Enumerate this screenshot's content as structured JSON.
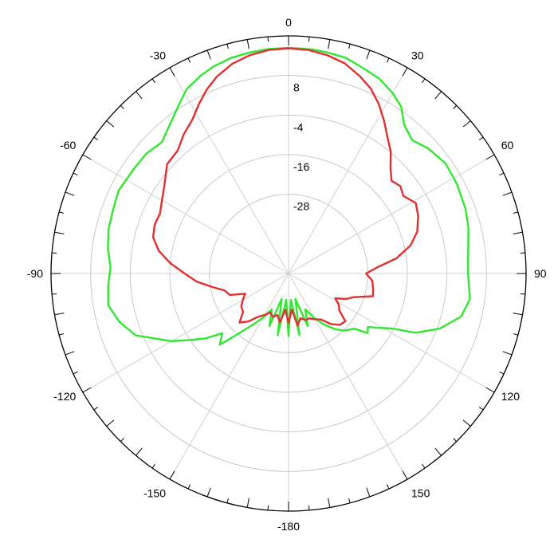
{
  "chart_data": {
    "type": "polar-line",
    "title": "",
    "angle_unit": "deg",
    "angle_labels": [
      {
        "angle": 0,
        "text": "0"
      },
      {
        "angle": 30,
        "text": "30"
      },
      {
        "angle": 60,
        "text": "60"
      },
      {
        "angle": 90,
        "text": "90"
      },
      {
        "angle": 120,
        "text": "120"
      },
      {
        "angle": 150,
        "text": "150"
      },
      {
        "angle": -180,
        "text": "-180"
      },
      {
        "angle": -150,
        "text": "-150"
      },
      {
        "angle": -120,
        "text": "-120"
      },
      {
        "angle": -90,
        "text": "-90"
      },
      {
        "angle": -60,
        "text": "-60"
      },
      {
        "angle": -30,
        "text": "-30"
      }
    ],
    "radial_labels": [
      "8",
      "-4",
      "-16",
      "-28"
    ],
    "radial_ticks": [
      8,
      -4,
      -16,
      -28
    ],
    "r_range": [
      -52,
      20
    ],
    "grid": true,
    "series": [
      {
        "color": "#32e632",
        "values": [
          [
            0,
            16.4
          ],
          [
            6,
            16.3
          ],
          [
            10,
            16.0
          ],
          [
            15,
            15.6
          ],
          [
            20,
            14.2
          ],
          [
            25,
            13.1
          ],
          [
            30,
            11.1
          ],
          [
            34,
            9.0
          ],
          [
            38,
            5.0
          ],
          [
            43,
            3.1
          ],
          [
            48,
            4.8
          ],
          [
            55,
            6.1
          ],
          [
            62,
            5.8
          ],
          [
            70,
            5.1
          ],
          [
            76,
            4.2
          ],
          [
            82,
            3.0
          ],
          [
            90,
            2.4
          ],
          [
            98,
            3.5
          ],
          [
            104,
            1.9
          ],
          [
            110,
            -3.2
          ],
          [
            115,
            -9.5
          ],
          [
            118,
            -16.5
          ],
          [
            121,
            -20.0
          ],
          [
            124,
            -23.0
          ],
          [
            127,
            -22.0
          ],
          [
            130,
            -26.0
          ],
          [
            133,
            -27.0
          ],
          [
            136,
            -28.0
          ],
          [
            140,
            -30.0
          ],
          [
            145,
            -33.0
          ],
          [
            150,
            -36.5
          ],
          [
            155,
            -40.0
          ],
          [
            160,
            -35.0
          ],
          [
            165,
            -44.0
          ],
          [
            170,
            -33.0
          ],
          [
            175,
            -44.0
          ],
          [
            180,
            -33.0
          ],
          [
            -175,
            -44.0
          ],
          [
            -170,
            -33.0
          ],
          [
            -165,
            -44.0
          ],
          [
            -160,
            -35.0
          ],
          [
            -155,
            -40.0
          ],
          [
            -150,
            -36.5
          ],
          [
            -145,
            -33.0
          ],
          [
            -140,
            -28.0
          ],
          [
            -136,
            -22.0
          ],
          [
            -132,
            -25.0
          ],
          [
            -128,
            -20.0
          ],
          [
            -124,
            -16.0
          ],
          [
            -120,
            -11.0
          ],
          [
            -116,
            -7.0
          ],
          [
            -112,
            -2.0
          ],
          [
            -106,
            1.3
          ],
          [
            -100,
            3.5
          ],
          [
            -94,
            2.8
          ],
          [
            -88,
            2.0
          ],
          [
            -82,
            3.3
          ],
          [
            -76,
            4.2
          ],
          [
            -70,
            4.6
          ],
          [
            -64,
            5.3
          ],
          [
            -56,
            4.6
          ],
          [
            -50,
            4.4
          ],
          [
            -44,
            3.3
          ],
          [
            -38,
            6.0
          ],
          [
            -33,
            9.0
          ],
          [
            -29,
            11.8
          ],
          [
            -24,
            13.6
          ],
          [
            -20,
            14.7
          ],
          [
            -15,
            15.6
          ],
          [
            -10,
            16.0
          ],
          [
            -5,
            16.3
          ],
          [
            0,
            16.4
          ]
        ]
      },
      {
        "color": "#e03030",
        "values": [
          [
            0,
            16.2
          ],
          [
            5,
            16.0
          ],
          [
            10,
            15.2
          ],
          [
            15,
            13.9
          ],
          [
            20,
            11.5
          ],
          [
            24,
            9.3
          ],
          [
            28,
            6.2
          ],
          [
            32,
            2.6
          ],
          [
            36,
            -1.0
          ],
          [
            40,
            -3.8
          ],
          [
            44,
            -7.5
          ],
          [
            48,
            -10.0
          ],
          [
            52,
            -9.0
          ],
          [
            56,
            -10.0
          ],
          [
            61,
            -7.9
          ],
          [
            66,
            -9.0
          ],
          [
            72,
            -11.0
          ],
          [
            77,
            -14.0
          ],
          [
            82,
            -19.0
          ],
          [
            86,
            -25.0
          ],
          [
            90,
            -28.5
          ],
          [
            95,
            -26.5
          ],
          [
            100,
            -26.0
          ],
          [
            105,
            -25.5
          ],
          [
            110,
            -31.0
          ],
          [
            114,
            -33.0
          ],
          [
            118,
            -36.0
          ],
          [
            122,
            -34.0
          ],
          [
            126,
            -33.0
          ],
          [
            130,
            -29.5
          ],
          [
            135,
            -30.0
          ],
          [
            140,
            -32.0
          ],
          [
            145,
            -35.0
          ],
          [
            150,
            -36.0
          ],
          [
            155,
            -37.0
          ],
          [
            160,
            -37.0
          ],
          [
            165,
            -38.0
          ],
          [
            170,
            -36.0
          ],
          [
            175,
            -41.0
          ],
          [
            180,
            -37.0
          ],
          [
            -175,
            -41.0
          ],
          [
            -170,
            -37.0
          ],
          [
            -165,
            -39.0
          ],
          [
            -160,
            -38.0
          ],
          [
            -155,
            -39.0
          ],
          [
            -150,
            -37.5
          ],
          [
            -145,
            -36.0
          ],
          [
            -140,
            -33.0
          ],
          [
            -135,
            -31.0
          ],
          [
            -130,
            -34.0
          ],
          [
            -125,
            -34.5
          ],
          [
            -120,
            -36.0
          ],
          [
            -115,
            -37.5
          ],
          [
            -110,
            -33.0
          ],
          [
            -105,
            -32.0
          ],
          [
            -100,
            -28.5
          ],
          [
            -95,
            -24.0
          ],
          [
            -90,
            -20.5
          ],
          [
            -85,
            -16.0
          ],
          [
            -80,
            -12.0
          ],
          [
            -75,
            -9.5
          ],
          [
            -70,
            -8.8
          ],
          [
            -65,
            -9.0
          ],
          [
            -61,
            -8.0
          ],
          [
            -55,
            -6.0
          ],
          [
            -48,
            -2.5
          ],
          [
            -42,
            -1.8
          ],
          [
            -37,
            0.8
          ],
          [
            -32,
            3.0
          ],
          [
            -28,
            6.0
          ],
          [
            -24,
            9.0
          ],
          [
            -20,
            11.5
          ],
          [
            -15,
            13.8
          ],
          [
            -10,
            15.2
          ],
          [
            -5,
            16.0
          ],
          [
            0,
            16.2
          ]
        ]
      }
    ]
  }
}
